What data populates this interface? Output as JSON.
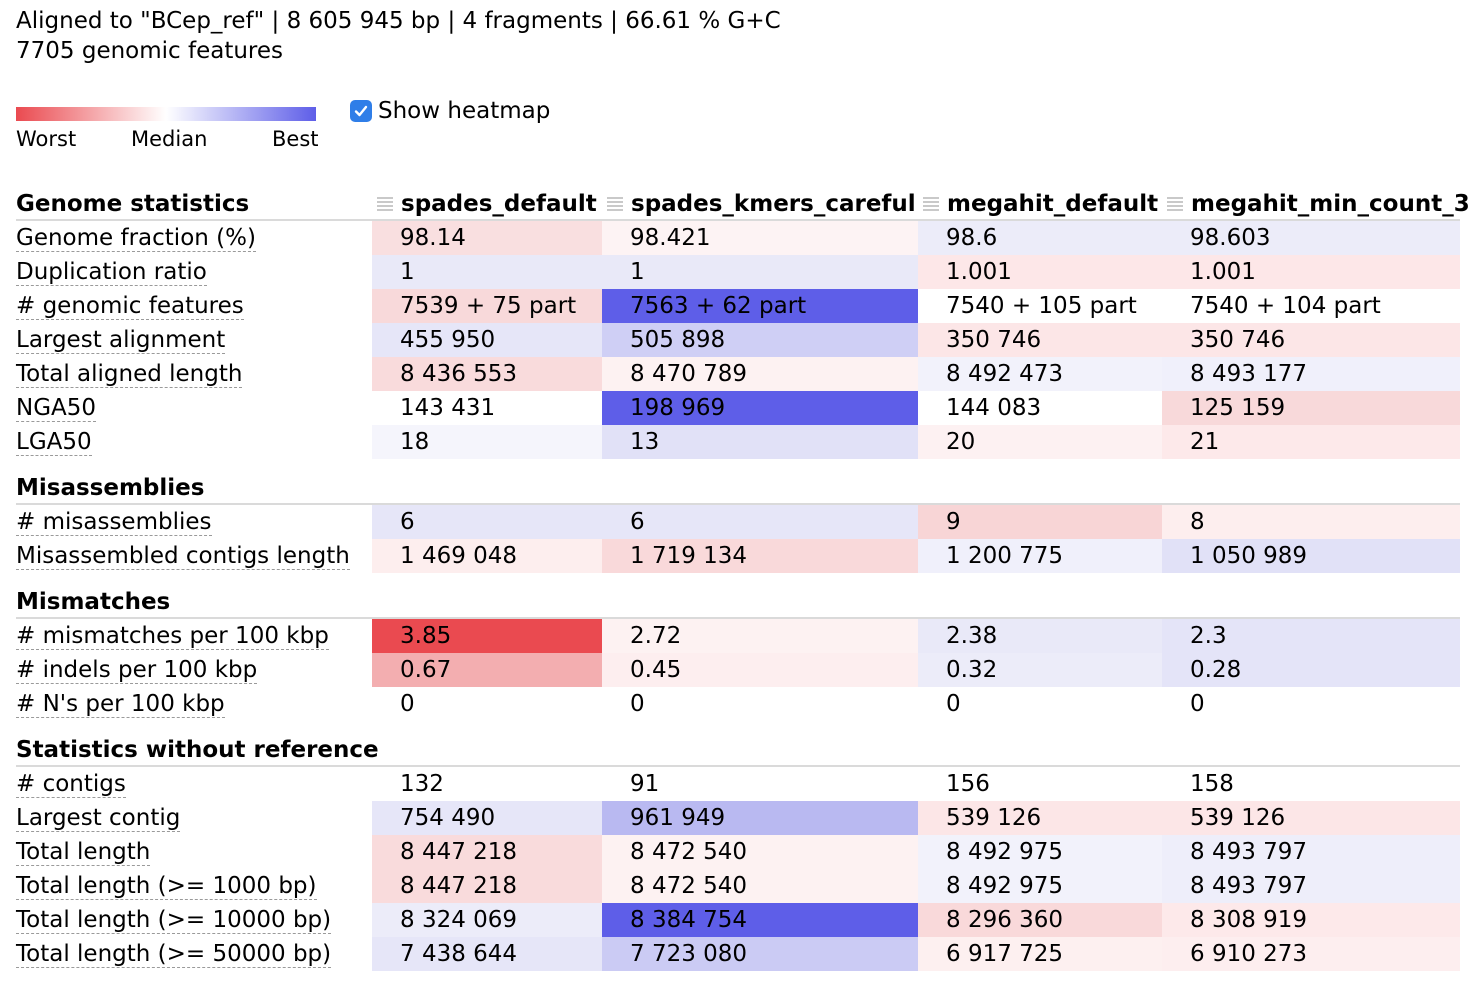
{
  "summary": {
    "line1": "Aligned to \"BCep_ref\" | 8 605 945 bp | 4 fragments | 66.61 % G+C",
    "line2": "7705 genomic features"
  },
  "legend": {
    "worst": "Worst",
    "median": "Median",
    "best": "Best",
    "colors": {
      "worst": "#ea4a50",
      "median": "#ffffff",
      "best": "#5e5ee8"
    }
  },
  "heatmap_toggle": {
    "label": "Show heatmap",
    "checked": true
  },
  "columns": [
    "spades_default",
    "spades_kmers_careful",
    "megahit_default",
    "megahit_min_count_3"
  ],
  "groups": [
    {
      "title": "Genome statistics",
      "rows": [
        {
          "metric": "Genome fraction (%)",
          "values": [
            "98.14",
            "98.421",
            "98.6",
            "98.603"
          ],
          "colors": [
            "#f9dfe0",
            "#fdf3f4",
            "#ececf9",
            "#ececf9"
          ]
        },
        {
          "metric": "Duplication ratio",
          "values": [
            "1",
            "1",
            "1.001",
            "1.001"
          ],
          "colors": [
            "#e9e9f8",
            "#e9e9f8",
            "#fde7e8",
            "#fde7e8"
          ]
        },
        {
          "metric": "# genomic features",
          "values": [
            "7539 + 75 part",
            "7563 + 62 part",
            "7540 + 105 part",
            "7540 + 104 part"
          ],
          "colors": [
            "#f8d9da",
            "#5e5ee8",
            "#ffffff",
            "#ffffff"
          ]
        },
        {
          "metric": "Largest alignment",
          "values": [
            "455 950",
            "505 898",
            "350 746",
            "350 746"
          ],
          "colors": [
            "#e6e6f8",
            "#cfcff5",
            "#fce6e7",
            "#fce6e7"
          ]
        },
        {
          "metric": "Total aligned length",
          "values": [
            "8 436 553",
            "8 470 789",
            "8 492 473",
            "8 493 177"
          ],
          "colors": [
            "#f9dbdc",
            "#fdf2f2",
            "#f2f2fb",
            "#f0f0fb"
          ]
        },
        {
          "metric": "NGA50",
          "values": [
            "143 431",
            "198 969",
            "144 083",
            "125 159"
          ],
          "colors": [
            "#ffffff",
            "#5e5ee8",
            "#ffffff",
            "#f8d9da"
          ]
        },
        {
          "metric": "LGA50",
          "values": [
            "18",
            "13",
            "20",
            "21"
          ],
          "colors": [
            "#f5f5fc",
            "#e1e1f7",
            "#fdf1f2",
            "#fde9ea"
          ]
        }
      ]
    },
    {
      "title": "Misassemblies",
      "rows": [
        {
          "metric": "# misassemblies",
          "values": [
            "6",
            "6",
            "9",
            "8"
          ],
          "colors": [
            "#e6e6f8",
            "#e6e6f8",
            "#f8d5d6",
            "#fdeeee"
          ]
        },
        {
          "metric": "Misassembled contigs length",
          "values": [
            "1 469 048",
            "1 719 134",
            "1 200 775",
            "1 050 989"
          ],
          "colors": [
            "#fdeeee",
            "#f9d9da",
            "#f0f0fb",
            "#e1e1f7"
          ]
        }
      ]
    },
    {
      "title": "Mismatches",
      "rows": [
        {
          "metric": "# mismatches per 100 kbp",
          "values": [
            "3.85",
            "2.72",
            "2.38",
            "2.3"
          ],
          "colors": [
            "#ea4a50",
            "#fdf2f2",
            "#e9e9f8",
            "#e4e4f8"
          ]
        },
        {
          "metric": "# indels per 100 kbp",
          "values": [
            "0.67",
            "0.45",
            "0.32",
            "0.28"
          ],
          "colors": [
            "#f3aeb0",
            "#fdeeef",
            "#ececf9",
            "#e4e4f8"
          ]
        },
        {
          "metric": "# N's per 100 kbp",
          "values": [
            "0",
            "0",
            "0",
            "0"
          ],
          "colors": [
            "#ffffff",
            "#ffffff",
            "#ffffff",
            "#ffffff"
          ]
        }
      ]
    },
    {
      "title": "Statistics without reference",
      "rows": [
        {
          "metric": "# contigs",
          "values": [
            "132",
            "91",
            "156",
            "158"
          ],
          "colors": [
            "#ffffff",
            "#ffffff",
            "#ffffff",
            "#ffffff"
          ]
        },
        {
          "metric": "Largest contig",
          "values": [
            "754 490",
            "961 949",
            "539 126",
            "539 126"
          ],
          "colors": [
            "#e6e6f8",
            "#b9b9f1",
            "#fce6e7",
            "#fce6e7"
          ]
        },
        {
          "metric": "Total length",
          "values": [
            "8 447 218",
            "8 472 540",
            "8 492 975",
            "8 493 797"
          ],
          "colors": [
            "#f9dbdc",
            "#fdf2f2",
            "#f2f2fb",
            "#eeeefa"
          ]
        },
        {
          "metric": "Total length (>= 1000 bp)",
          "values": [
            "8 447 218",
            "8 472 540",
            "8 492 975",
            "8 493 797"
          ],
          "colors": [
            "#f9dbdc",
            "#fdf2f2",
            "#f2f2fb",
            "#eeeefa"
          ]
        },
        {
          "metric": "Total length (>= 10000 bp)",
          "values": [
            "8 324 069",
            "8 384 754",
            "8 296 360",
            "8 308 919"
          ],
          "colors": [
            "#ececf9",
            "#5e5ee8",
            "#f9d9da",
            "#fde9ea"
          ]
        },
        {
          "metric": "Total length (>= 50000 bp)",
          "values": [
            "7 438 644",
            "7 723 080",
            "6 917 725",
            "6 910 273"
          ],
          "colors": [
            "#e6e6f8",
            "#cbcbf4",
            "#fdf0f0",
            "#fdeeef"
          ]
        }
      ]
    }
  ]
}
